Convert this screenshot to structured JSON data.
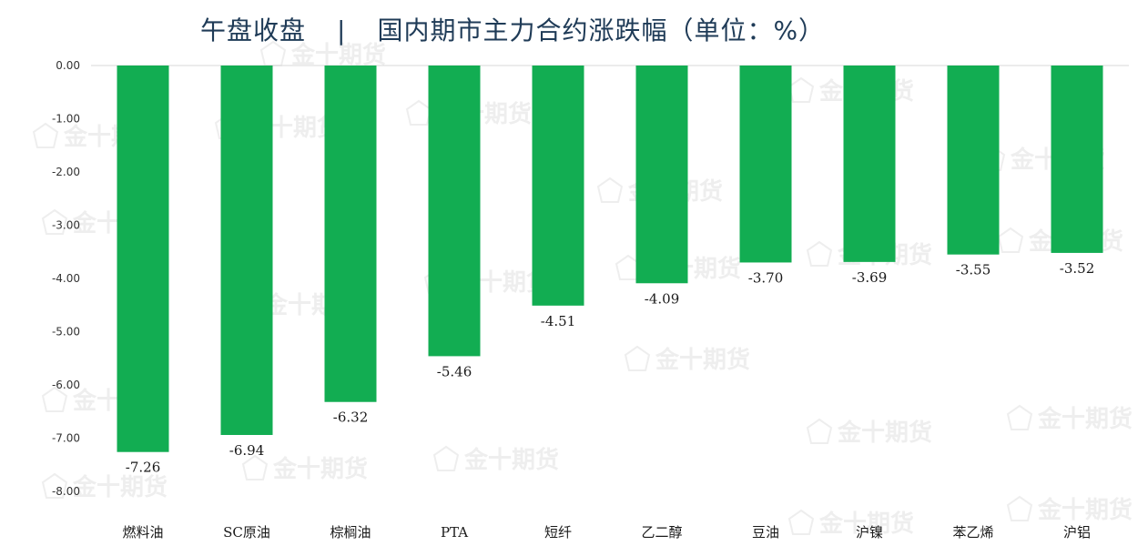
{
  "title": {
    "left": "午盘收盘",
    "separator": "|",
    "right": "国内期市主力合约涨跌幅（单位：%）"
  },
  "chart_data": {
    "type": "bar",
    "categories": [
      "燃料油",
      "SC原油",
      "棕榈油",
      "PTA",
      "短纤",
      "乙二醇",
      "豆油",
      "沪镍",
      "苯乙烯",
      "沪铝"
    ],
    "values": [
      -7.26,
      -6.94,
      -6.32,
      -5.46,
      -4.51,
      -4.09,
      -3.7,
      -3.69,
      -3.55,
      -3.52
    ],
    "data_labels": [
      "-7.26",
      "-6.94",
      "-6.32",
      "-5.46",
      "-4.51",
      "-4.09",
      "-3.70",
      "-3.69",
      "-3.55",
      "-3.52"
    ],
    "yticks": [
      "0.00",
      "-1.00",
      "-2.00",
      "-3.00",
      "-4.00",
      "-5.00",
      "-6.00",
      "-7.00",
      "-8.00"
    ],
    "ylim": [
      -8,
      0
    ],
    "grid": false,
    "bar_color": "#12ad52",
    "watermark": "金十期货"
  }
}
